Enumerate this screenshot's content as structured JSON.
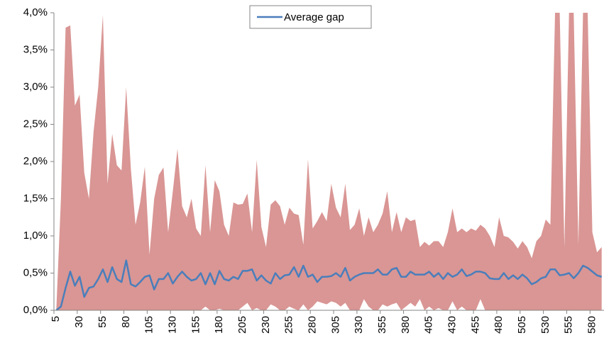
{
  "chart_data": {
    "type": "line",
    "categories": [
      5,
      null,
      null,
      null,
      null,
      30,
      null,
      null,
      null,
      null,
      55,
      null,
      null,
      null,
      null,
      80,
      null,
      null,
      null,
      null,
      105,
      null,
      null,
      null,
      null,
      130,
      null,
      null,
      null,
      null,
      155,
      null,
      null,
      null,
      null,
      180,
      null,
      null,
      null,
      null,
      205,
      null,
      null,
      null,
      null,
      230,
      null,
      null,
      null,
      null,
      255,
      null,
      null,
      null,
      null,
      280,
      null,
      null,
      null,
      null,
      305,
      null,
      null,
      null,
      null,
      330,
      null,
      null,
      null,
      null,
      355,
      null,
      null,
      null,
      null,
      380,
      null,
      null,
      null,
      null,
      405,
      null,
      null,
      null,
      null,
      430,
      null,
      null,
      null,
      null,
      455,
      null,
      null,
      null,
      null,
      480,
      null,
      null,
      null,
      null,
      505,
      null,
      null,
      null,
      null,
      530,
      null,
      null,
      null,
      null,
      555,
      null,
      null,
      null,
      null,
      580,
      null,
      null
    ],
    "series": [
      {
        "name": "Average gap",
        "color": "#4a7ebb",
        "values": [
          0,
          0.05,
          0.3,
          0.52,
          0.33,
          0.45,
          0.18,
          0.3,
          0.32,
          0.42,
          0.55,
          0.38,
          0.58,
          0.42,
          0.38,
          0.67,
          0.35,
          0.32,
          0.38,
          0.45,
          0.47,
          0.28,
          0.42,
          0.42,
          0.5,
          0.36,
          0.45,
          0.52,
          0.45,
          0.4,
          0.42,
          0.5,
          0.35,
          0.5,
          0.35,
          0.53,
          0.42,
          0.4,
          0.45,
          0.42,
          0.53,
          0.53,
          0.55,
          0.4,
          0.47,
          0.4,
          0.36,
          0.5,
          0.42,
          0.47,
          0.48,
          0.58,
          0.45,
          0.6,
          0.45,
          0.48,
          0.38,
          0.45,
          0.45,
          0.46,
          0.5,
          0.45,
          0.57,
          0.4,
          0.45,
          0.48,
          0.5,
          0.5,
          0.5,
          0.55,
          0.48,
          0.48,
          0.55,
          0.57,
          0.45,
          0.45,
          0.52,
          0.48,
          0.48,
          0.48,
          0.52,
          0.45,
          0.5,
          0.42,
          0.5,
          0.45,
          0.48,
          0.55,
          0.46,
          0.48,
          0.52,
          0.52,
          0.5,
          0.43,
          0.42,
          0.42,
          0.5,
          0.42,
          0.47,
          0.42,
          0.48,
          0.43,
          0.35,
          0.38,
          0.43,
          0.45,
          0.55,
          0.55,
          0.47,
          0.48,
          0.5,
          0.43,
          0.5,
          0.6,
          0.57,
          0.52,
          0.47,
          0.45
        ]
      }
    ],
    "band": {
      "color": "#d99694",
      "upper": [
        0,
        1.5,
        3.8,
        3.83,
        2.75,
        2.9,
        1.85,
        1.5,
        2.4,
        3.0,
        3.97,
        1.7,
        2.37,
        1.95,
        1.88,
        3.0,
        1.9,
        1.15,
        1.45,
        1.93,
        0.75,
        1.5,
        1.82,
        1.92,
        1.05,
        1.6,
        2.17,
        1.4,
        1.25,
        1.5,
        1.1,
        1.0,
        1.95,
        1.05,
        1.75,
        1.6,
        1.15,
        1.0,
        1.45,
        1.42,
        1.43,
        1.57,
        1.05,
        2.02,
        1.12,
        0.85,
        1.42,
        1.48,
        1.4,
        1.15,
        1.38,
        1.3,
        1.28,
        0.88,
        2.03,
        1.1,
        1.2,
        1.32,
        1.2,
        1.7,
        1.38,
        1.25,
        1.7,
        1.08,
        1.15,
        1.37,
        1.0,
        1.25,
        1.05,
        1.15,
        1.3,
        1.6,
        1.05,
        1.32,
        1.05,
        1.25,
        1.2,
        1.22,
        0.85,
        0.92,
        0.87,
        0.93,
        0.93,
        0.85,
        1.05,
        1.37,
        1.05,
        1.1,
        1.05,
        1.1,
        1.07,
        1.15,
        1.1,
        1.0,
        0.85,
        1.25,
        1.0,
        0.98,
        0.92,
        0.83,
        0.93,
        0.85,
        0.7,
        0.93,
        1.0,
        1.22,
        1.15,
        4.0,
        4.0,
        0.85,
        4.0,
        4.0,
        0.88,
        4.0,
        4.0,
        1.05,
        0.78,
        0.85
      ],
      "lower": [
        0,
        0,
        0,
        0,
        0,
        0,
        0,
        0,
        0,
        0,
        0,
        0,
        0,
        0,
        0,
        0,
        0,
        0,
        0,
        0,
        0,
        0,
        0,
        0,
        0,
        0,
        0,
        0,
        0,
        0,
        0,
        0,
        0.05,
        0,
        0,
        0.02,
        0,
        0,
        0,
        0,
        0.05,
        0.1,
        0,
        0.03,
        0,
        0,
        0.08,
        0.05,
        0,
        0,
        0.05,
        0.02,
        0,
        0.08,
        0,
        0.05,
        0.12,
        0.1,
        0.08,
        0.12,
        0.1,
        0.05,
        0.1,
        0,
        0,
        0,
        0.15,
        0.05,
        0,
        0,
        0.08,
        0.05,
        0.08,
        0.1,
        0,
        0.05,
        0.1,
        0.05,
        0.15,
        0,
        0.05,
        0,
        0.03,
        0,
        0,
        0.12,
        0,
        0.05,
        0,
        0,
        0,
        0.15,
        0,
        0,
        0,
        0,
        0,
        0,
        0,
        0,
        0,
        0,
        0,
        0,
        0,
        0,
        0,
        0,
        0,
        0,
        0,
        0,
        0,
        0,
        0,
        0,
        0,
        0
      ]
    },
    "ylim": [
      0,
      4
    ],
    "yticks": [
      {
        "value": 0,
        "label": "0,0%"
      },
      {
        "value": 0.5,
        "label": "0,5%"
      },
      {
        "value": 1,
        "label": "1,0%"
      },
      {
        "value": 1.5,
        "label": "1,5%"
      },
      {
        "value": 2,
        "label": "2,0%"
      },
      {
        "value": 2.5,
        "label": "2,5%"
      },
      {
        "value": 3,
        "label": "3,0%"
      },
      {
        "value": 3.5,
        "label": "3,5%"
      },
      {
        "value": 4,
        "label": "4,0%"
      }
    ],
    "grid": false,
    "legend": "top"
  }
}
